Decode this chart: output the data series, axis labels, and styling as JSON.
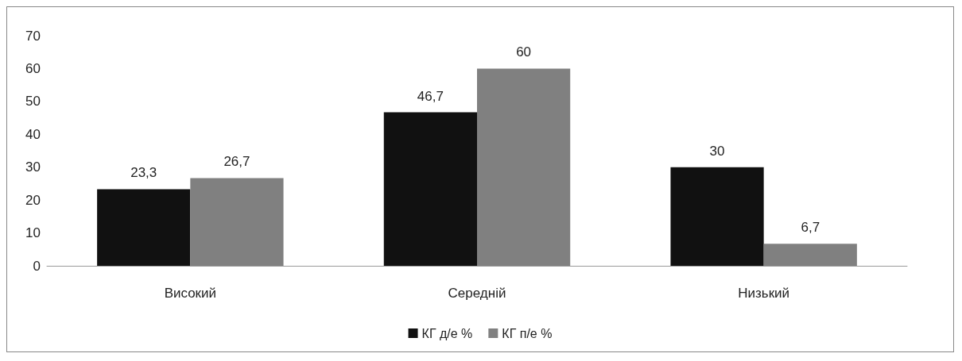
{
  "chart_data": {
    "type": "bar",
    "categories": [
      "Високий",
      "Середній",
      "Низький"
    ],
    "series": [
      {
        "name": "КГ д/е %",
        "color": "#111111",
        "values": [
          23.3,
          46.7,
          30
        ],
        "value_labels": [
          "23,3",
          "46,7",
          "30"
        ]
      },
      {
        "name": "КГ п/е %",
        "color": "#808080",
        "values": [
          26.7,
          60,
          6.7
        ],
        "value_labels": [
          "26,7",
          "60",
          "6,7"
        ]
      }
    ],
    "ylim": [
      0,
      70
    ],
    "yticks": [
      0,
      10,
      20,
      30,
      40,
      50,
      60,
      70
    ],
    "grid": false,
    "legend": "bottom"
  }
}
